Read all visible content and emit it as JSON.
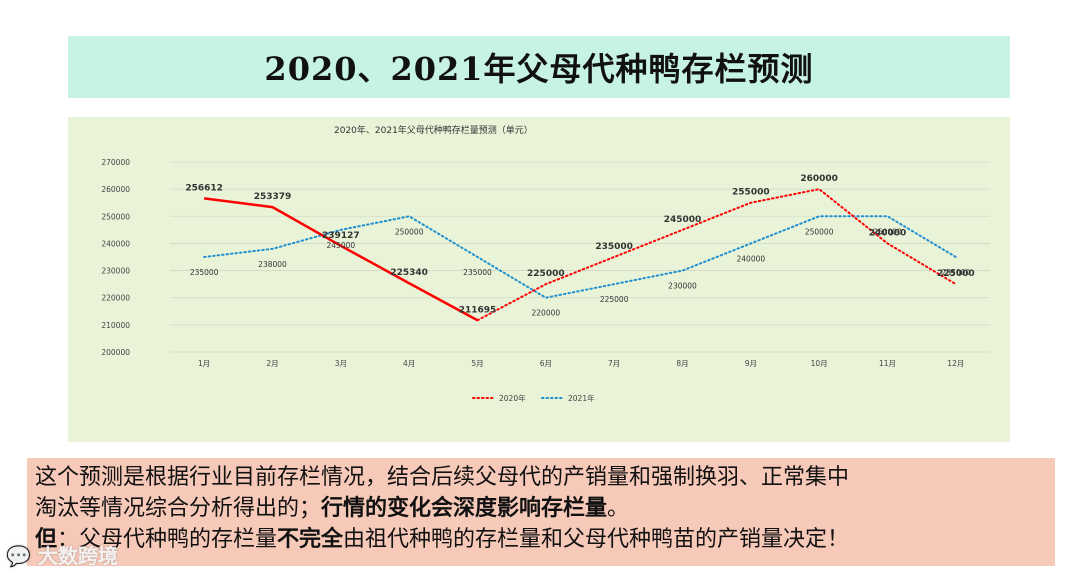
{
  "slide": {
    "title": "2020、2021年父母代种鸭存栏预测",
    "note": {
      "line1": "这个预测是根据行业目前存栏情况，结合后续父母代的产销量和强制换羽、正常集中",
      "line2_normal": "淘汰等情况综合分析得出的；",
      "line2_bold": "行情的变化会深度影响存栏量",
      "line2_end": "。",
      "line3_bold1": "但",
      "line3_normal1": "：父母代种鸭的存栏量",
      "line3_bold2": "不完全",
      "line3_normal2": "由祖代种鸭的存栏量和父母代种鸭苗的产销量决定！"
    },
    "watermark": "大数跨境",
    "watermark_icon": "chat-bubble-icon"
  },
  "chart_data": {
    "type": "line",
    "title": "2020年、2021年父母代种鸭存栏量预测（单元）",
    "categories": [
      "1月",
      "2月",
      "3月",
      "4月",
      "5月",
      "6月",
      "7月",
      "8月",
      "9月",
      "10月",
      "11月",
      "12月"
    ],
    "ylim": [
      200000,
      270000
    ],
    "yticks": [
      "200000",
      "210000",
      "220000",
      "230000",
      "240000",
      "250000",
      "260000",
      "270000"
    ],
    "grid": true,
    "legend_position": "bottom",
    "series": [
      {
        "name": "2020年",
        "color": "#ff0000",
        "values": [
          256612,
          253379,
          239127,
          225340,
          211695,
          225000,
          235000,
          245000,
          255000,
          260000,
          240000,
          225000
        ],
        "labels": [
          "256612",
          "253379",
          "239127",
          "225340",
          "211695",
          "225000",
          "235000",
          "245000",
          "255000",
          "260000",
          "240000",
          "225000"
        ],
        "solid_until_index": 4
      },
      {
        "name": "2021年",
        "color": "#1f8fd0",
        "values": [
          235000,
          238000,
          245000,
          250000,
          235000,
          220000,
          225000,
          230000,
          240000,
          250000,
          250000,
          235000
        ],
        "labels": [
          "235000",
          "238000",
          "245000",
          "250000",
          "235000",
          "220000",
          "225000",
          "230000",
          "240000",
          "250000",
          "250000",
          "235000"
        ]
      }
    ]
  }
}
